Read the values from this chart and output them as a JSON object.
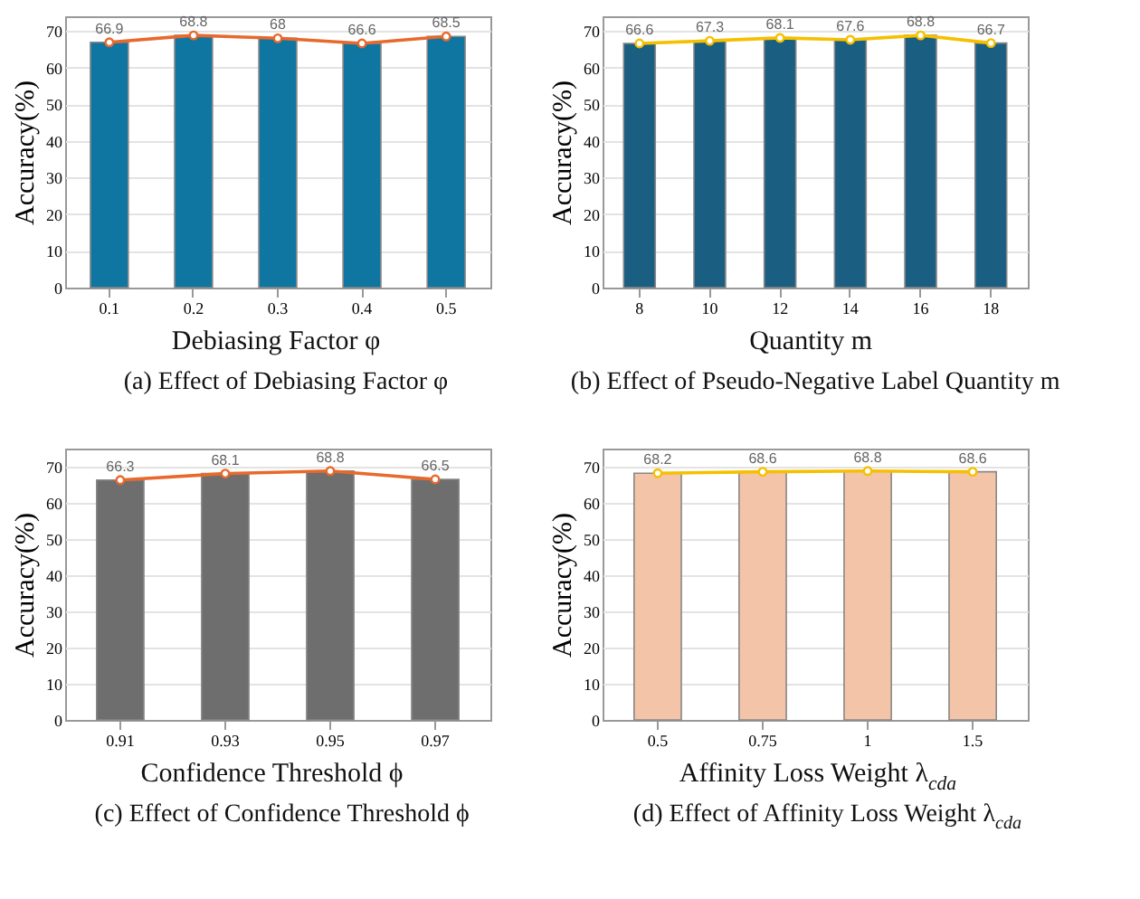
{
  "chart_data": [
    {
      "type": "bar",
      "title": "(a) Effect of Debiasing Factor φ",
      "xlabel": "Debiasing Factor φ",
      "ylabel": "Accuracy(%)",
      "categories": [
        "0.1",
        "0.2",
        "0.3",
        "0.4",
        "0.5"
      ],
      "series": [
        {
          "type": "bar",
          "color": "#0e76a0",
          "values": [
            66.9,
            68.8,
            68,
            66.6,
            68.5
          ]
        },
        {
          "type": "line",
          "color": "#e8692c",
          "marker": "circle",
          "values": [
            66.9,
            68.8,
            68,
            66.6,
            68.5
          ],
          "value_labels": [
            "66.9",
            "68.8",
            "68",
            "66.6",
            "68.5"
          ]
        }
      ],
      "ylim": [
        0,
        74
      ],
      "yticks": [
        0,
        10,
        20,
        30,
        40,
        50,
        60,
        70
      ],
      "grid": "y"
    },
    {
      "type": "bar",
      "title": "(b) Effect of Pseudo-Negative Label Quantity m",
      "xlabel": "Quantity m",
      "ylabel": "Accuracy(%)",
      "categories": [
        "8",
        "10",
        "12",
        "14",
        "16",
        "18"
      ],
      "series": [
        {
          "type": "bar",
          "color": "#1a5e82",
          "values": [
            66.6,
            67.3,
            68.1,
            67.6,
            68.8,
            66.7
          ]
        },
        {
          "type": "line",
          "color": "#f5c000",
          "marker": "circle",
          "values": [
            66.6,
            67.3,
            68.1,
            67.6,
            68.8,
            66.7
          ],
          "value_labels": [
            "66.6",
            "67.3",
            "68.1",
            "67.6",
            "68.8",
            "66.7"
          ]
        }
      ],
      "ylim": [
        0,
        74
      ],
      "yticks": [
        0,
        10,
        20,
        30,
        40,
        50,
        60,
        70
      ],
      "grid": "y"
    },
    {
      "type": "bar",
      "title": "(c) Effect of Confidence Threshold ϕ",
      "xlabel": "Confidence Threshold ϕ",
      "ylabel": "Accuracy(%)",
      "categories": [
        "0.91",
        "0.93",
        "0.95",
        "0.97"
      ],
      "series": [
        {
          "type": "bar",
          "color": "#6e6e6e",
          "values": [
            66.3,
            68.1,
            68.8,
            66.5
          ]
        },
        {
          "type": "line",
          "color": "#e8692c",
          "marker": "circle",
          "values": [
            66.3,
            68.1,
            68.8,
            66.5
          ],
          "value_labels": [
            "66.3",
            "68.1",
            "68.8",
            "66.5"
          ]
        }
      ],
      "ylim": [
        0,
        75
      ],
      "yticks": [
        0,
        10,
        20,
        30,
        40,
        50,
        60,
        70
      ],
      "grid": "y"
    },
    {
      "type": "bar",
      "title": "(d) Effect of Affinity Loss Weight λ$_{cda}$",
      "xlabel": "Affinity Loss Weight λ$_{cda}$",
      "ylabel": "Accuracy(%)",
      "categories": [
        "0.5",
        "0.75",
        "1",
        "1.5"
      ],
      "series": [
        {
          "type": "bar",
          "color": "#f4c4a8",
          "values": [
            68.2,
            68.6,
            68.8,
            68.6
          ]
        },
        {
          "type": "line",
          "color": "#f5c000",
          "marker": "circle",
          "values": [
            68.2,
            68.6,
            68.8,
            68.6
          ],
          "value_labels": [
            "68.2",
            "68.6",
            "68.8",
            "68.6"
          ]
        }
      ],
      "ylim": [
        0,
        75
      ],
      "yticks": [
        0,
        10,
        20,
        30,
        40,
        50,
        60,
        70
      ],
      "grid": "y"
    }
  ]
}
